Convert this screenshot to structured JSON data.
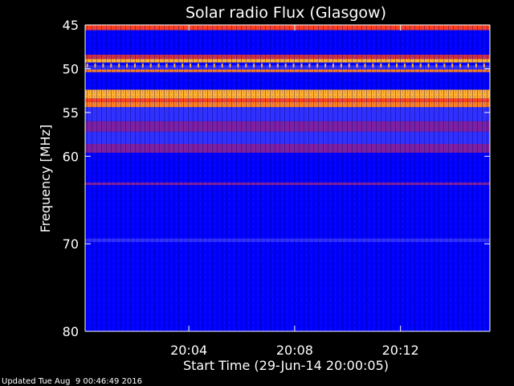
{
  "chart_data": {
    "type": "heatmap",
    "title": "Solar radio Flux (Glasgow)",
    "xlabel": "Start Time (29-Jun-14 20:00:05)",
    "ylabel": "Frequency [MHz]",
    "x_range_minutes": [
      0,
      15.3
    ],
    "x_tick_labels": [
      "20:04",
      "20:08",
      "20:12"
    ],
    "x_tick_minutes": [
      3.92,
      7.92,
      11.92
    ],
    "ylim": [
      45,
      80
    ],
    "y_tick_labels": [
      "45",
      "50",
      "55",
      "60",
      "70",
      "80"
    ],
    "y_ticks": [
      45,
      50,
      55,
      60,
      70,
      80
    ],
    "colormap": [
      "#000080",
      "#0000ff",
      "#3030ff",
      "#8020a0",
      "#d03040",
      "#ff4020",
      "#ff8020",
      "#ffb030"
    ],
    "bands_mhz": [
      {
        "from": 45.0,
        "to": 45.6,
        "level": 5
      },
      {
        "from": 45.6,
        "to": 48.4,
        "level": 1
      },
      {
        "from": 48.4,
        "to": 48.9,
        "level": 4
      },
      {
        "from": 48.9,
        "to": 49.3,
        "level": 7
      },
      {
        "from": 49.3,
        "to": 49.6,
        "level": 1
      },
      {
        "from": 49.6,
        "to": 50.1,
        "level": 2
      },
      {
        "from": 50.1,
        "to": 50.4,
        "level": 6
      },
      {
        "from": 50.4,
        "to": 52.4,
        "level": 1
      },
      {
        "from": 52.4,
        "to": 53.4,
        "level": 7
      },
      {
        "from": 53.4,
        "to": 53.8,
        "level": 5
      },
      {
        "from": 53.8,
        "to": 54.4,
        "level": 6
      },
      {
        "from": 54.4,
        "to": 56.0,
        "level": 2
      },
      {
        "from": 56.0,
        "to": 57.2,
        "level": 3
      },
      {
        "from": 57.2,
        "to": 58.6,
        "level": 2
      },
      {
        "from": 58.6,
        "to": 59.6,
        "level": 3
      },
      {
        "from": 59.6,
        "to": 63.0,
        "level": 1
      },
      {
        "from": 63.0,
        "to": 63.3,
        "level": 3
      },
      {
        "from": 63.3,
        "to": 69.4,
        "level": 1
      },
      {
        "from": 69.4,
        "to": 69.8,
        "level": 2
      },
      {
        "from": 69.8,
        "to": 80.0,
        "level": 1
      }
    ]
  },
  "footer_text": "Updated Tue Aug  9 00:46:49 2016"
}
